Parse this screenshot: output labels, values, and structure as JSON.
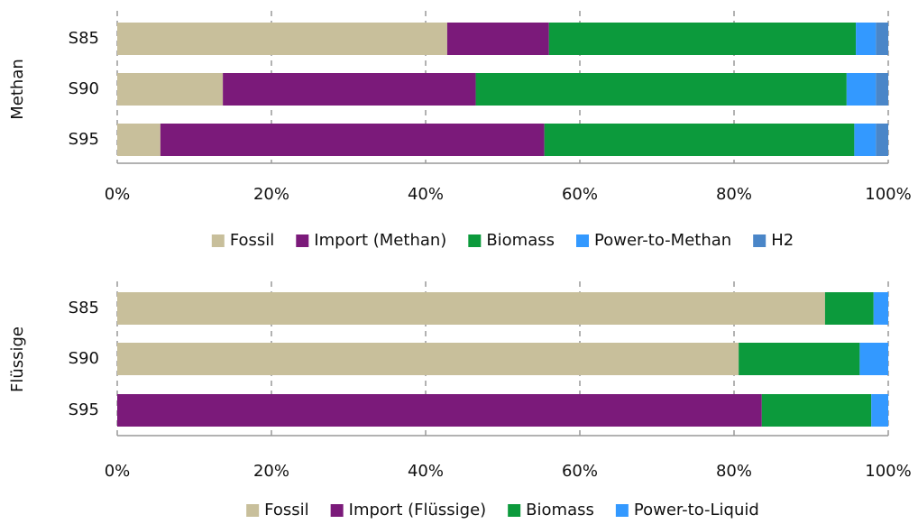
{
  "chart_data": [
    {
      "type": "bar",
      "stacked": true,
      "orientation": "horizontal",
      "ylabel": "Methan",
      "categories": [
        "S85",
        "S90",
        "S95"
      ],
      "series": [
        {
          "name": "Fossil",
          "color": "#c8bf9b",
          "values": [
            42.8,
            13.7,
            5.6
          ]
        },
        {
          "name": "Import (Methan)",
          "color": "#7b1a7a",
          "values": [
            13.2,
            32.8,
            49.8
          ]
        },
        {
          "name": "Biomass",
          "color": "#0c9a3c",
          "values": [
            39.8,
            48.1,
            40.2
          ]
        },
        {
          "name": "Power-to-Methan",
          "color": "#3399ff",
          "values": [
            2.6,
            3.8,
            2.8
          ]
        },
        {
          "name": "H2",
          "color": "#4a86c8",
          "values": [
            1.6,
            1.6,
            1.6
          ]
        }
      ],
      "xlim": [
        0,
        100
      ],
      "xticks": [
        {
          "value": 0,
          "label": "0%"
        },
        {
          "value": 20,
          "label": "20%"
        },
        {
          "value": 40,
          "label": "40%"
        },
        {
          "value": 60,
          "label": "60%"
        },
        {
          "value": 80,
          "label": "80%"
        },
        {
          "value": 100,
          "label": "100%"
        }
      ],
      "grid": true,
      "legend": "bottom"
    },
    {
      "type": "bar",
      "stacked": true,
      "orientation": "horizontal",
      "ylabel": "Flüssige",
      "categories": [
        "S85",
        "S90",
        "S95"
      ],
      "series": [
        {
          "name": "Fossil",
          "color": "#c8bf9b",
          "values": [
            91.8,
            80.6,
            0
          ]
        },
        {
          "name": "Import (Flüssige)",
          "color": "#7b1a7a",
          "values": [
            0,
            0,
            83.6
          ]
        },
        {
          "name": "Biomass",
          "color": "#0c9a3c",
          "values": [
            6.3,
            15.7,
            14.2
          ]
        },
        {
          "name": "Power-to-Liquid",
          "color": "#3399ff",
          "values": [
            1.9,
            3.7,
            2.2
          ]
        }
      ],
      "xlim": [
        0,
        100
      ],
      "xticks": [
        {
          "value": 0,
          "label": "0%"
        },
        {
          "value": 20,
          "label": "20%"
        },
        {
          "value": 40,
          "label": "40%"
        },
        {
          "value": 60,
          "label": "60%"
        },
        {
          "value": 80,
          "label": "80%"
        },
        {
          "value": 100,
          "label": "100%"
        }
      ],
      "grid": true,
      "legend": "bottom"
    }
  ]
}
